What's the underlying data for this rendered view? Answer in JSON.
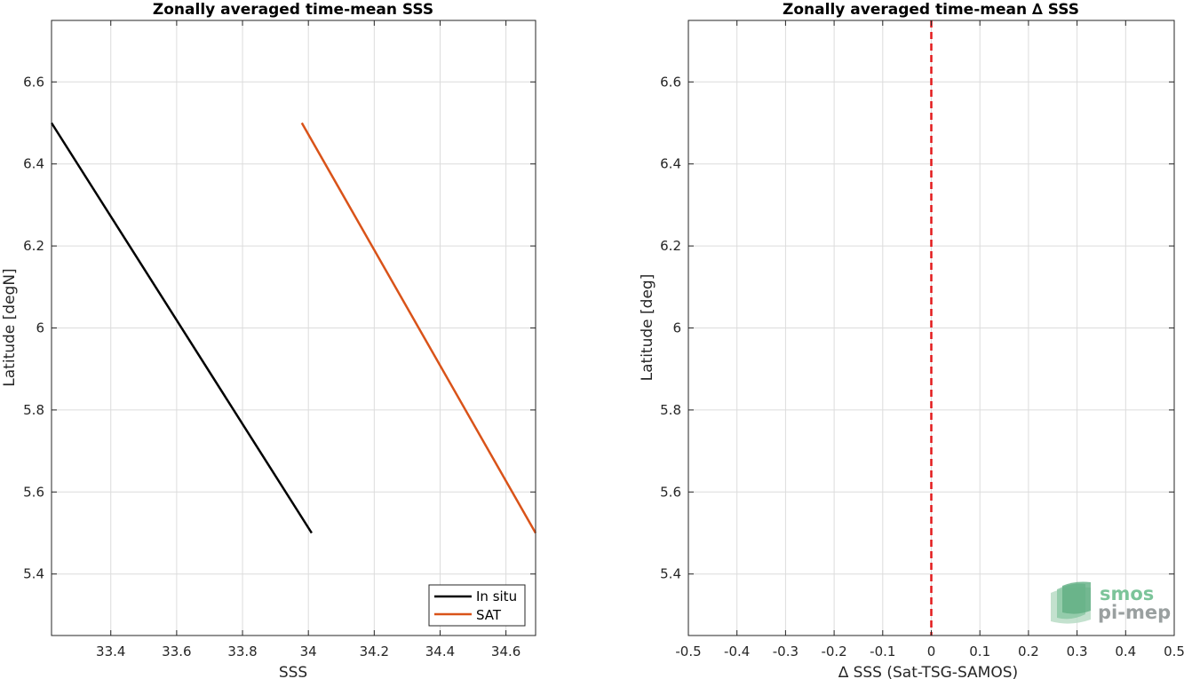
{
  "chart_data": [
    {
      "type": "line",
      "title": "Zonally averaged time-mean SSS",
      "xlabel": "SSS",
      "ylabel": "Latitude [degN]",
      "xlim": [
        33.22,
        34.69
      ],
      "ylim": [
        5.25,
        6.75
      ],
      "xticks": [
        "33.4",
        "33.6",
        "33.8",
        "34",
        "34.2",
        "34.4",
        "34.6"
      ],
      "yticks": [
        "5.4",
        "5.6",
        "5.8",
        "6",
        "6.2",
        "6.4",
        "6.6"
      ],
      "grid": true,
      "legend_position": "bottom-right",
      "series": [
        {
          "name": "In situ",
          "color": "#000000",
          "x": [
            33.22,
            34.01
          ],
          "y": [
            6.5,
            5.5
          ]
        },
        {
          "name": "SAT",
          "color": "#D95319",
          "x": [
            33.98,
            34.69
          ],
          "y": [
            6.5,
            5.5
          ]
        }
      ]
    },
    {
      "type": "line",
      "title": "Zonally averaged time-mean ∆ SSS",
      "xlabel": "∆ SSS (Sat-TSG-SAMOS)",
      "ylabel": "Latitude [deg]",
      "xlim": [
        -0.5,
        0.5
      ],
      "ylim": [
        5.25,
        6.75
      ],
      "xticks": [
        "-0.5",
        "-0.4",
        "-0.3",
        "-0.2",
        "-0.1",
        "0",
        "0.1",
        "0.2",
        "0.3",
        "0.4",
        "0.5"
      ],
      "yticks": [
        "5.4",
        "5.6",
        "5.8",
        "6",
        "6.2",
        "6.4",
        "6.6"
      ],
      "grid": true,
      "reference_line": {
        "x": 0,
        "color": "#E31A1C",
        "style": "dashed"
      }
    }
  ],
  "logo": {
    "line1": "smos",
    "line2": "pi-mep"
  }
}
